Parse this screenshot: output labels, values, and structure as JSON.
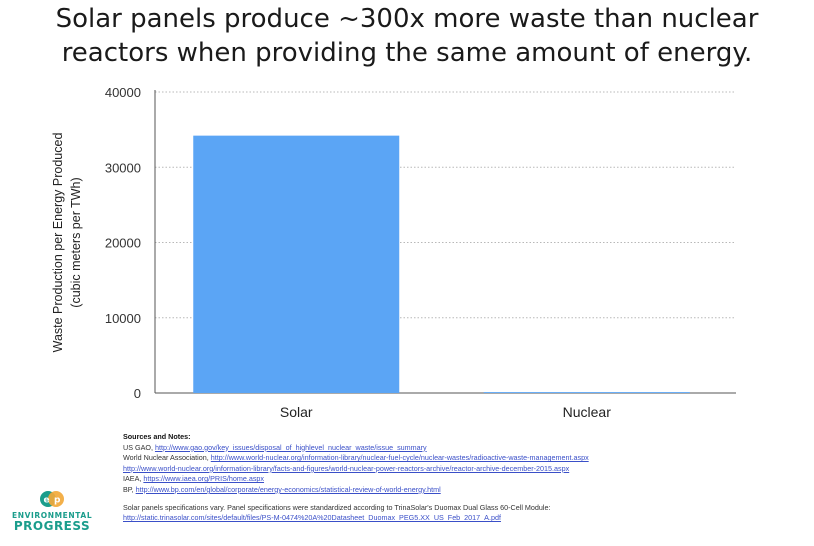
{
  "title_lines": [
    "Solar panels produce ~300x more waste than nuclear",
    "reactors when providing the same amount of energy."
  ],
  "chart_data": {
    "type": "bar",
    "categories": [
      "Solar",
      "Nuclear"
    ],
    "values": [
      34200,
      120
    ],
    "ylabel_lines": [
      "Waste Production per Energy Produced",
      "(cubic meters per TWh)"
    ],
    "yticks": [
      0,
      10000,
      20000,
      30000,
      40000
    ],
    "ylim": [
      0,
      40000
    ],
    "grid": true,
    "bar_color": "#5ba5f5"
  },
  "sources": {
    "heading": "Sources and Notes:",
    "lines": [
      {
        "prefix": "US GAO, ",
        "link": "http://www.gao.gov/key_issues/disposal_of_highlevel_nuclear_waste/issue_summary"
      },
      {
        "prefix": "World Nuclear Association, ",
        "link": "http://www.world-nuclear.org/information-library/nuclear-fuel-cycle/nuclear-wastes/radioactive-waste-management.aspx"
      },
      {
        "prefix": "",
        "link": "http://www.world-nuclear.org/information-library/facts-and-figures/world-nuclear-power-reactors-archive/reactor-archive-december-2015.aspx"
      },
      {
        "prefix": "IAEA, ",
        "link": "https://www.iaea.org/PRIS/home.aspx"
      },
      {
        "prefix": "BP, ",
        "link": "http://www.bp.com/en/global/corporate/energy-economics/statistical-review-of-world-energy.html"
      }
    ],
    "note": "Solar panels specifications vary. Panel specifications were standardized according to TrinaSolar's Duomax Dual Glass 60-Cell Module:",
    "note_link": "http://static.trinasolar.com/sites/default/files/PS-M-0474%20A%20Datasheet_Duomax_PEG5.XX_US_Feb_2017_A.pdf"
  },
  "logo": {
    "line1": "ENVIRONMENTAL",
    "line2": "PROGRESS",
    "colors": [
      "#1b9d8c",
      "#f2a93b"
    ]
  }
}
